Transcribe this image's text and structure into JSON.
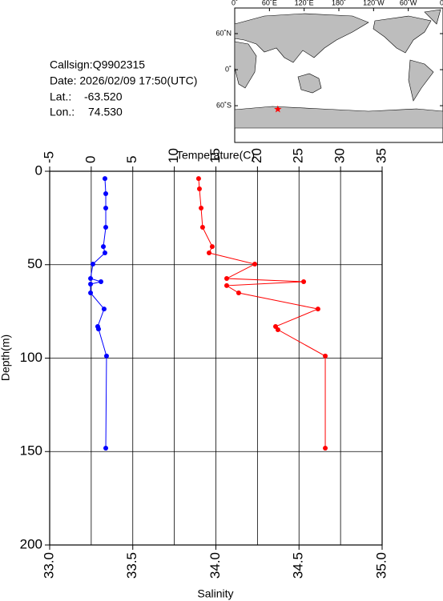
{
  "chart_data": {
    "type": "profile",
    "x_label": "Salinity",
    "x2_label": "Temperature(C)",
    "y_label": "Depth(m)",
    "xlim": [
      33,
      35
    ],
    "xticks": [
      {
        "value": 33,
        "label": "33.0"
      },
      {
        "value": 33.5,
        "label": "33.5"
      },
      {
        "value": 34,
        "label": "34.0"
      },
      {
        "value": 34.5,
        "label": "34.5"
      },
      {
        "value": 35,
        "label": "35.0"
      }
    ],
    "x2lim": [
      -5,
      35
    ],
    "x2ticks": [
      -5,
      0,
      5,
      10,
      15,
      20,
      25,
      30,
      35
    ],
    "ylim": [
      0,
      200
    ],
    "yticks": [
      0,
      50,
      100,
      150,
      200
    ],
    "y_inverted": true,
    "grid": true,
    "series": [
      {
        "color": "#0000ff",
        "axis": "x2",
        "values": [
          1.65,
          1.75,
          1.75,
          1.75,
          1.46,
          1.65,
          0.2,
          -0.08,
          1.17,
          -0.08,
          -0.08,
          1.55,
          0.78,
          0.88,
          1.84,
          1.75
        ],
        "depth": [
          3.9,
          12,
          19.7,
          30,
          40.3,
          43.7,
          49.7,
          57.4,
          59.1,
          60.4,
          65.1,
          73.7,
          83.1,
          84.4,
          98.9,
          148.2
        ]
      },
      {
        "color": "#ff0000",
        "axis": "x",
        "values": [
          33.896,
          33.901,
          33.911,
          33.92,
          33.978,
          33.959,
          34.234,
          34.065,
          34.528,
          34.065,
          34.137,
          34.614,
          34.359,
          34.373,
          34.658,
          34.658
        ],
        "depth": [
          3.9,
          9.4,
          19.7,
          30,
          40.3,
          43.7,
          49.7,
          57.4,
          59.1,
          61.2,
          65.1,
          73.7,
          83.1,
          84.8,
          98.9,
          148.2
        ]
      }
    ],
    "info": {
      "callsign": "Callsign:Q9902315",
      "date": "Date:  2026/02/09 17:50(UTC)",
      "lat_label": "Lat.:",
      "lat": {
        "value": -63.52,
        "label": "-63.520"
      },
      "lon_label": "Lon.:",
      "lon": {
        "value": 74.53,
        "label": "74.530"
      }
    },
    "map": {
      "lonlim": [
        0,
        360
      ],
      "latlim": [
        -82,
        78
      ],
      "marker_color": "#ff0000",
      "lonticks": [
        {
          "value": 0,
          "label": "0˚"
        },
        {
          "value": 60,
          "label": "60˚E"
        },
        {
          "value": 120,
          "label": "120˚E"
        },
        {
          "value": 180,
          "label": "180˚"
        },
        {
          "value": 240,
          "label": "120˚W"
        },
        {
          "value": 300,
          "label": "60˚W"
        },
        {
          "value": 360,
          "label": "0˚"
        }
      ],
      "latticks": [
        {
          "value": 60,
          "label": "60˚N"
        },
        {
          "value": 0,
          "label": "0˚"
        },
        {
          "value": -60,
          "label": "60˚S"
        }
      ]
    }
  }
}
